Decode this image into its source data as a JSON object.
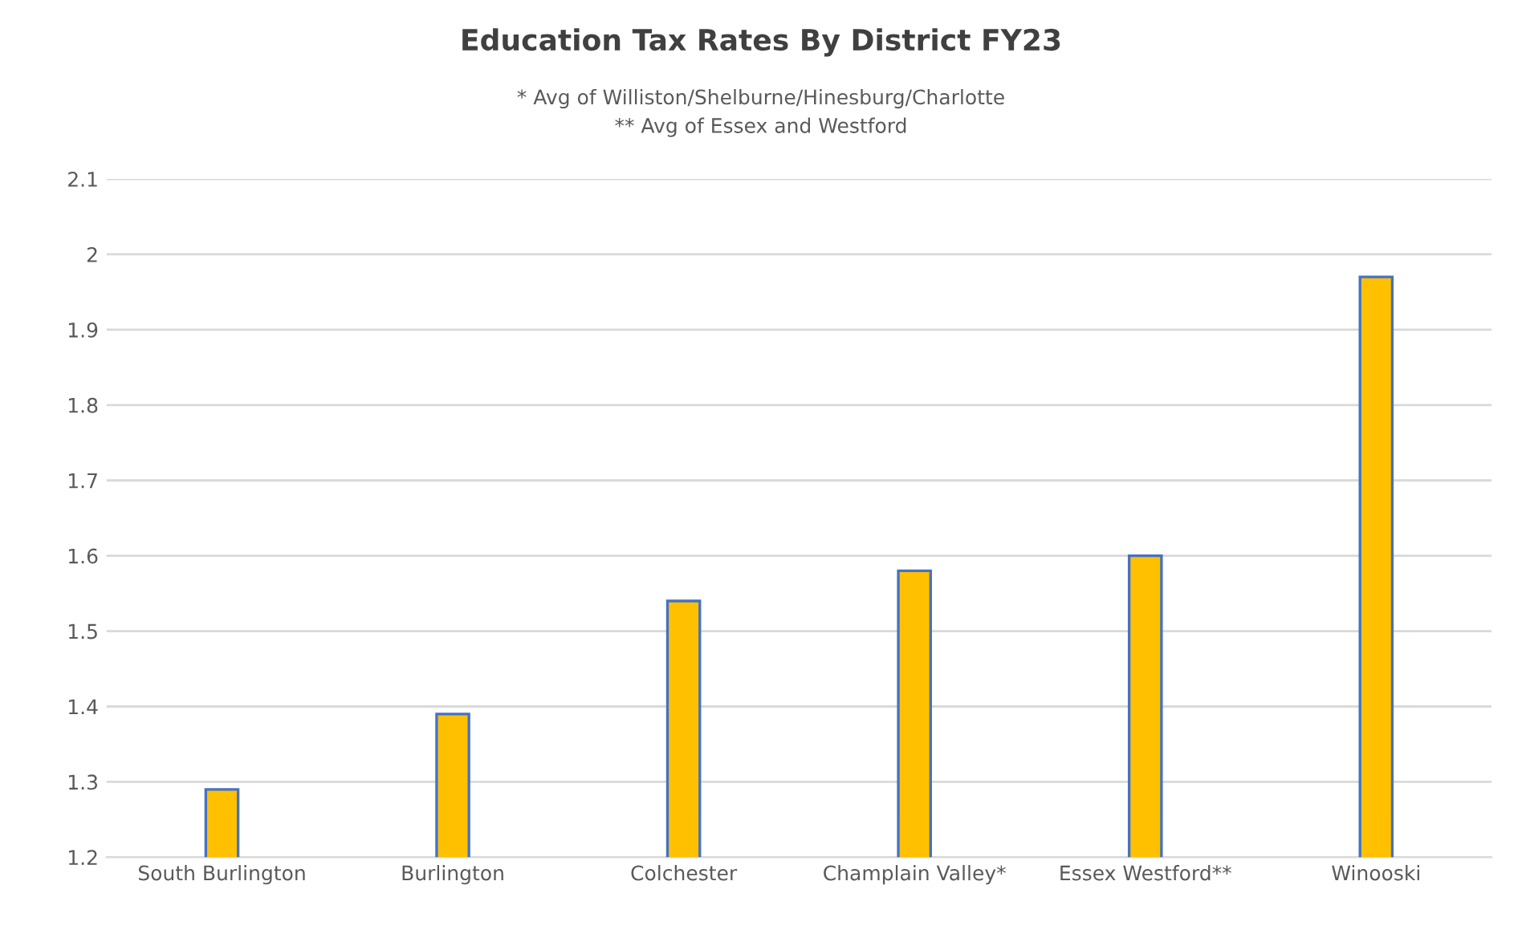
{
  "chart_data": {
    "type": "bar",
    "title": "Education Tax Rates By District FY23",
    "subtitle": "* Avg of Williston/Shelburne/Hinesburg/Charlotte\n** Avg of Essex and Westford",
    "categories": [
      "South Burlington",
      "Burlington",
      "Colchester",
      "Champlain Valley*",
      "Essex Westford**",
      "Winooski"
    ],
    "series": [
      {
        "color": "#ffc000",
        "values": [
          1.29,
          1.39,
          1.54,
          1.58,
          1.6,
          1.97
        ]
      }
    ],
    "ylim": [
      1.2,
      2.1
    ],
    "yticks": [
      1.2,
      1.3,
      1.4,
      1.5,
      1.6,
      1.7,
      1.8,
      1.9,
      2,
      2.1
    ],
    "grid": "y",
    "legend": false
  }
}
